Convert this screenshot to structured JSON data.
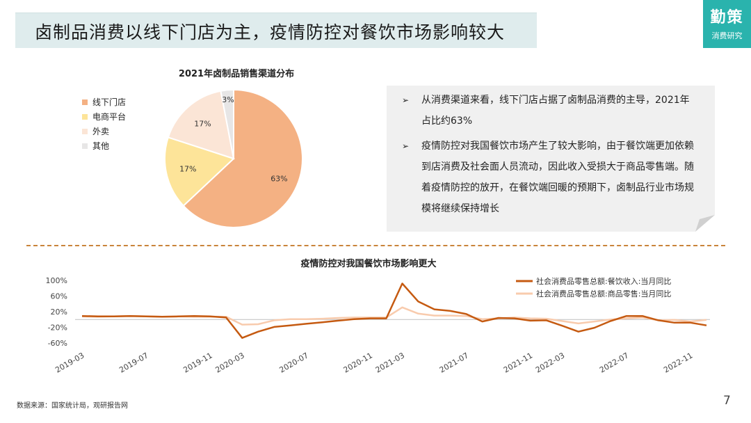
{
  "header": {
    "title": "卤制品消费以线下门店为主，疫情防控对餐饮市场影响较大"
  },
  "logo": {
    "main": "勤策",
    "sub": "消费研究"
  },
  "textbox": {
    "bullets": [
      {
        "marker": "➢",
        "text": "从消费渠道来看，线下门店占据了卤制品消费的主导，2021年占比约63%"
      },
      {
        "marker": "➢",
        "text": "疫情防控对我国餐饮市场产生了较大影响，由于餐饮端更加依赖到店消费及社会面人员流动，因此收入受损大于商品零售端。随着疫情防控的放开，在餐饮端回暖的预期下，卤制品行业市场规模将继续保持增长"
      }
    ]
  },
  "footer": {
    "source": "数据来源：国家统计局，观研报告网",
    "page": "7"
  },
  "chart_data": [
    {
      "type": "pie",
      "title": "2021年卤制品销售渠道分布",
      "categories": [
        "线下门店",
        "电商平台",
        "外卖",
        "其他"
      ],
      "values": [
        63,
        17,
        17,
        3
      ],
      "labels": [
        "63%",
        "17%",
        "17%",
        "3%"
      ],
      "colors": [
        "#f4b183",
        "#fde499",
        "#fbe5d6",
        "#e7e6e6"
      ],
      "legend_position": "left"
    },
    {
      "type": "line",
      "title": "疫情防控对我国餐饮市场影响更大",
      "x": [
        "2019-03",
        "2019-04",
        "2019-05",
        "2019-06",
        "2019-07",
        "2019-08",
        "2019-09",
        "2019-10",
        "2019-11",
        "2019-12",
        "2020-03",
        "2020-04",
        "2020-05",
        "2020-06",
        "2020-07",
        "2020-08",
        "2020-09",
        "2020-10",
        "2020-11",
        "2020-12",
        "2021-03",
        "2021-04",
        "2021-05",
        "2021-06",
        "2021-07",
        "2021-08",
        "2021-09",
        "2021-10",
        "2021-11",
        "2021-12",
        "2022-03",
        "2022-04",
        "2022-05",
        "2022-06",
        "2022-07",
        "2022-08",
        "2022-09",
        "2022-10",
        "2022-11",
        "2022-12"
      ],
      "x_tick_labels": [
        "2019-03",
        "2019-07",
        "2019-11",
        "2020-03",
        "2020-07",
        "2020-11",
        "2021-03",
        "2021-07",
        "2021-11",
        "2022-03",
        "2022-07",
        "2022-11"
      ],
      "series": [
        {
          "name": "社会消费品零售总额:餐饮收入:当月同比",
          "color": "#c55a11",
          "values": [
            9,
            8,
            8,
            9,
            8,
            7,
            8,
            9,
            8,
            5,
            -47,
            -31,
            -19,
            -15,
            -11,
            -7,
            -3,
            1,
            3,
            3,
            92,
            46,
            26,
            22,
            14,
            -5,
            4,
            3,
            -3,
            -2,
            -16,
            -31,
            -21,
            -4,
            9,
            9,
            -2,
            -8,
            -8,
            -15
          ]
        },
        {
          "name": "社会消费品零售总额:商品零售:当月同比",
          "color": "#f8cbad",
          "values": [
            8,
            7,
            8,
            9,
            8,
            7,
            8,
            7,
            7,
            7,
            -13,
            -12,
            -2,
            1,
            1,
            2,
            4,
            5,
            5,
            5,
            31,
            15,
            10,
            10,
            9,
            1,
            3,
            5,
            3,
            2,
            -4,
            -10,
            -5,
            0,
            3,
            5,
            -2,
            -1,
            -5,
            -1
          ]
        }
      ],
      "ylim": [
        -60,
        100
      ],
      "y_ticks": [
        100,
        60,
        20,
        -20,
        -60
      ],
      "y_tick_labels": [
        "100%",
        "60%",
        "20%",
        "-20%",
        "-60%"
      ],
      "legend_position": "top-right"
    }
  ]
}
